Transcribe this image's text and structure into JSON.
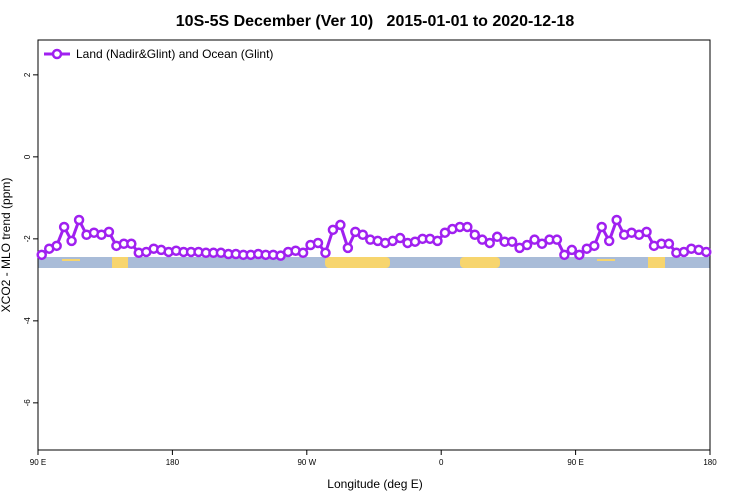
{
  "chart_data": {
    "type": "line",
    "title": "10S-5S December (Ver 10)   2015-01-01 to 2020-12-18",
    "x_label": "Longitude (deg E)",
    "y_label": "XCO2 - MLO trend (ppm)",
    "xlim": [
      90,
      540
    ],
    "ylim": [
      -7.15,
      2.85
    ],
    "xticks": [
      {
        "value": 90,
        "label": "90 E"
      },
      180,
      {
        "value": 270,
        "label": "90 W"
      },
      {
        "value": 360,
        "label": "0"
      },
      {
        "value": 450,
        "label": "90 E"
      },
      {
        "value": 540,
        "label": "180"
      }
    ],
    "yticks": [
      2,
      0,
      -2,
      -4,
      -6
    ],
    "legend_position": "top-left",
    "x": [
      92.5,
      97.5,
      102.5,
      107.5,
      112.5,
      117.5,
      122.5,
      127.5,
      132.5,
      137.5,
      142.5,
      147.5,
      152.5,
      157.5,
      162.5,
      167.5,
      172.5,
      177.5,
      182.5,
      187.5,
      192.5,
      197.5,
      202.5,
      207.5,
      212.5,
      217.5,
      222.5,
      227.5,
      232.5,
      237.5,
      242.5,
      247.5,
      252.5,
      257.5,
      262.5,
      267.5,
      272.5,
      277.5,
      282.5,
      287.5,
      292.5,
      297.5,
      302.5,
      307.5,
      312.5,
      317.5,
      322.5,
      327.5,
      332.5,
      337.5,
      342.5,
      347.5,
      352.5,
      357.5,
      362.5,
      367.5,
      372.5,
      377.5,
      382.5,
      387.5,
      392.5,
      397.5,
      402.5,
      407.5,
      412.5,
      417.5,
      422.5,
      427.5,
      432.5,
      437.5,
      442.5,
      447.5,
      452.5,
      457.5,
      462.5,
      467.5,
      472.5,
      477.5,
      482.5,
      487.5,
      492.5,
      497.5,
      502.5,
      507.5,
      512.5,
      517.5,
      522.5,
      527.5,
      532.5,
      537.5
    ],
    "series": [
      {
        "name": "Land (Nadir&Glint) and Ocean (Glint)",
        "color": "#a020f0",
        "values": [
          -2.39,
          -2.24,
          -2.17,
          -1.71,
          -2.05,
          -1.54,
          -1.9,
          -1.85,
          -1.9,
          -1.83,
          -2.17,
          -2.12,
          -2.12,
          -2.34,
          -2.32,
          -2.24,
          -2.27,
          -2.32,
          -2.29,
          -2.32,
          -2.32,
          -2.32,
          -2.34,
          -2.34,
          -2.34,
          -2.37,
          -2.37,
          -2.39,
          -2.39,
          -2.37,
          -2.39,
          -2.39,
          -2.41,
          -2.32,
          -2.29,
          -2.34,
          -2.15,
          -2.1,
          -2.34,
          -1.78,
          -1.66,
          -2.22,
          -1.83,
          -1.9,
          -2.02,
          -2.05,
          -2.1,
          -2.05,
          -1.98,
          -2.1,
          -2.07,
          -2.0,
          -2.0,
          -2.05,
          -1.85,
          -1.76,
          -1.71,
          -1.71,
          -1.9,
          -2.02,
          -2.1,
          -1.95,
          -2.07,
          -2.07,
          -2.22,
          -2.15,
          -2.02,
          -2.12,
          -2.02,
          -2.02,
          -2.39,
          -2.27,
          -2.39,
          -2.24,
          -2.17,
          -1.71,
          -2.05,
          -1.54,
          -1.9,
          -1.85,
          -1.9,
          -1.83,
          -2.17,
          -2.12,
          -2.12,
          -2.34,
          -2.32,
          -2.24,
          -2.27,
          -2.32
        ]
      }
    ]
  }
}
